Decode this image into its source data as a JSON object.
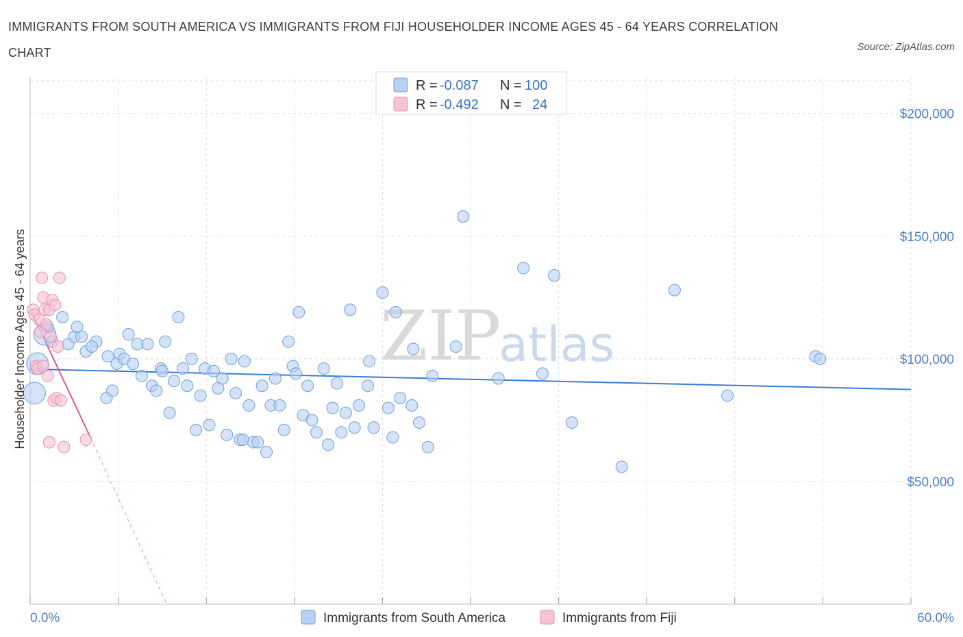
{
  "title": "IMMIGRANTS FROM SOUTH AMERICA VS IMMIGRANTS FROM FIJI HOUSEHOLDER INCOME AGES 45 - 64 YEARS CORRELATION CHART",
  "source": "Source: ZipAtlas.com",
  "watermark": {
    "zip": "ZIP",
    "atlas": "atlas"
  },
  "colors": {
    "blue_fill": "#b8d0f2",
    "blue_stroke": "#6f9fdc",
    "blue_line": "#3a7bd5",
    "pink_fill": "#f7c3d4",
    "pink_stroke": "#e890ad",
    "pink_line": "#e0588a",
    "tick_blue": "#4a7fc7",
    "grid": "#dddddd"
  },
  "legend": {
    "rows": [
      {
        "r_label": "R = ",
        "r_value": "-0.087",
        "n_label": "N = ",
        "n_value": "100",
        "series": "blue"
      },
      {
        "r_label": "R = ",
        "r_value": "-0.492",
        "n_label": "N = ",
        "n_value": "24",
        "series": "pink"
      }
    ]
  },
  "bottom_legend": [
    "Immigrants from South America",
    "Immigrants from Fiji"
  ],
  "chart_data": {
    "type": "scatter",
    "title": "IMMIGRANTS FROM SOUTH AMERICA VS IMMIGRANTS FROM FIJI HOUSEHOLDER INCOME AGES 45 - 64 YEARS CORRELATION CHART",
    "xlabel": "",
    "ylabel": "Householder Income Ages 45 - 64 years",
    "xlim": [
      0,
      60
    ],
    "ylim": [
      0,
      215000
    ],
    "x_tick_labels": [
      {
        "value": 0,
        "label": "0.0%"
      },
      {
        "value": 60,
        "label": "60.0%"
      }
    ],
    "y_ticks": [
      {
        "value": 200000,
        "label": "$200,000"
      },
      {
        "value": 150000,
        "label": "$150,000"
      },
      {
        "value": 100000,
        "label": "$100,000"
      },
      {
        "value": 50000,
        "label": "$50,000"
      }
    ],
    "grid": true,
    "legend_position": "top-center",
    "series": [
      {
        "name": "Immigrants from South America",
        "color": "#b8d0f2",
        "trend": {
          "x": [
            0,
            60
          ],
          "y": [
            95800,
            87500
          ],
          "style": "solid"
        },
        "points": [
          {
            "x": 0.3,
            "y": 86000,
            "big": true
          },
          {
            "x": 0.5,
            "y": 98000,
            "big": true
          },
          {
            "x": 1.0,
            "y": 110000,
            "big": true
          },
          {
            "x": 1.2,
            "y": 113000
          },
          {
            "x": 1.5,
            "y": 107000
          },
          {
            "x": 2.2,
            "y": 117000
          },
          {
            "x": 2.6,
            "y": 106000
          },
          {
            "x": 3.0,
            "y": 109000
          },
          {
            "x": 3.2,
            "y": 113000
          },
          {
            "x": 3.5,
            "y": 109000
          },
          {
            "x": 3.8,
            "y": 103000
          },
          {
            "x": 4.5,
            "y": 107000
          },
          {
            "x": 4.2,
            "y": 105000
          },
          {
            "x": 5.3,
            "y": 101000
          },
          {
            "x": 5.2,
            "y": 84000
          },
          {
            "x": 5.6,
            "y": 87000
          },
          {
            "x": 5.9,
            "y": 98000
          },
          {
            "x": 6.1,
            "y": 102000
          },
          {
            "x": 6.4,
            "y": 100000
          },
          {
            "x": 6.7,
            "y": 110000
          },
          {
            "x": 7.0,
            "y": 98000
          },
          {
            "x": 7.3,
            "y": 106000
          },
          {
            "x": 7.6,
            "y": 93000
          },
          {
            "x": 8.0,
            "y": 106000
          },
          {
            "x": 8.3,
            "y": 89000
          },
          {
            "x": 8.6,
            "y": 87000
          },
          {
            "x": 8.9,
            "y": 96000
          },
          {
            "x": 9.2,
            "y": 107000
          },
          {
            "x": 9.5,
            "y": 78000
          },
          {
            "x": 9.8,
            "y": 91000
          },
          {
            "x": 10.1,
            "y": 117000
          },
          {
            "x": 10.4,
            "y": 96000
          },
          {
            "x": 10.7,
            "y": 89000
          },
          {
            "x": 11.0,
            "y": 100000
          },
          {
            "x": 11.3,
            "y": 71000
          },
          {
            "x": 11.6,
            "y": 85000
          },
          {
            "x": 11.9,
            "y": 96000
          },
          {
            "x": 12.2,
            "y": 73000
          },
          {
            "x": 12.5,
            "y": 95000
          },
          {
            "x": 12.8,
            "y": 88000
          },
          {
            "x": 13.1,
            "y": 92000
          },
          {
            "x": 13.4,
            "y": 69000
          },
          {
            "x": 13.7,
            "y": 100000
          },
          {
            "x": 14.0,
            "y": 86000
          },
          {
            "x": 14.3,
            "y": 67000
          },
          {
            "x": 14.6,
            "y": 99000
          },
          {
            "x": 14.9,
            "y": 81000
          },
          {
            "x": 15.2,
            "y": 66000
          },
          {
            "x": 15.5,
            "y": 66000
          },
          {
            "x": 15.8,
            "y": 89000
          },
          {
            "x": 16.1,
            "y": 62000
          },
          {
            "x": 16.4,
            "y": 81000
          },
          {
            "x": 16.7,
            "y": 92000
          },
          {
            "x": 17.0,
            "y": 81000
          },
          {
            "x": 17.3,
            "y": 71000
          },
          {
            "x": 17.6,
            "y": 107000
          },
          {
            "x": 17.9,
            "y": 97000
          },
          {
            "x": 18.1,
            "y": 94000
          },
          {
            "x": 18.3,
            "y": 119000
          },
          {
            "x": 18.6,
            "y": 77000
          },
          {
            "x": 18.9,
            "y": 89000
          },
          {
            "x": 19.2,
            "y": 75000
          },
          {
            "x": 19.5,
            "y": 70000
          },
          {
            "x": 20.0,
            "y": 96000
          },
          {
            "x": 20.3,
            "y": 65000
          },
          {
            "x": 20.6,
            "y": 80000
          },
          {
            "x": 20.9,
            "y": 90000
          },
          {
            "x": 21.2,
            "y": 70000
          },
          {
            "x": 21.5,
            "y": 78000
          },
          {
            "x": 21.8,
            "y": 120000
          },
          {
            "x": 22.1,
            "y": 72000
          },
          {
            "x": 22.4,
            "y": 81000
          },
          {
            "x": 23.0,
            "y": 89000
          },
          {
            "x": 23.1,
            "y": 99000
          },
          {
            "x": 23.4,
            "y": 72000
          },
          {
            "x": 24.0,
            "y": 127000
          },
          {
            "x": 24.4,
            "y": 80000
          },
          {
            "x": 24.7,
            "y": 68000
          },
          {
            "x": 24.9,
            "y": 119000
          },
          {
            "x": 25.2,
            "y": 84000
          },
          {
            "x": 26.0,
            "y": 81000
          },
          {
            "x": 26.1,
            "y": 104000
          },
          {
            "x": 26.5,
            "y": 74000
          },
          {
            "x": 27.1,
            "y": 64000
          },
          {
            "x": 27.4,
            "y": 93000
          },
          {
            "x": 29.0,
            "y": 105000
          },
          {
            "x": 29.5,
            "y": 158000
          },
          {
            "x": 31.9,
            "y": 92000
          },
          {
            "x": 33.6,
            "y": 137000
          },
          {
            "x": 34.9,
            "y": 94000
          },
          {
            "x": 35.7,
            "y": 134000
          },
          {
            "x": 36.9,
            "y": 74000
          },
          {
            "x": 40.3,
            "y": 56000
          },
          {
            "x": 43.9,
            "y": 128000
          },
          {
            "x": 47.5,
            "y": 85000
          },
          {
            "x": 53.5,
            "y": 101000
          },
          {
            "x": 53.8,
            "y": 100000
          },
          {
            "x": 14.5,
            "y": 67000
          },
          {
            "x": 9.0,
            "y": 95000
          }
        ]
      },
      {
        "name": "Immigrants from Fiji",
        "color": "#f7c3d4",
        "trend": {
          "x": [
            0.1,
            4.1
          ],
          "y": [
            119000,
            68000
          ],
          "style": "solid",
          "extension": {
            "x": [
              4.1,
              9.3
            ],
            "y": [
              68000,
              0
            ],
            "style": "dashed"
          }
        },
        "points": [
          {
            "x": 0.2,
            "y": 120000
          },
          {
            "x": 0.3,
            "y": 118000
          },
          {
            "x": 0.4,
            "y": 97000
          },
          {
            "x": 0.6,
            "y": 116000
          },
          {
            "x": 0.8,
            "y": 133000
          },
          {
            "x": 0.9,
            "y": 125000
          },
          {
            "x": 0.7,
            "y": 111000
          },
          {
            "x": 1.0,
            "y": 120000
          },
          {
            "x": 1.1,
            "y": 114000
          },
          {
            "x": 1.2,
            "y": 93000
          },
          {
            "x": 1.3,
            "y": 120000
          },
          {
            "x": 1.5,
            "y": 124000
          },
          {
            "x": 1.6,
            "y": 83000
          },
          {
            "x": 1.7,
            "y": 122000
          },
          {
            "x": 1.8,
            "y": 84000
          },
          {
            "x": 1.9,
            "y": 105000
          },
          {
            "x": 2.0,
            "y": 133000
          },
          {
            "x": 2.1,
            "y": 83000
          },
          {
            "x": 2.3,
            "y": 64000
          },
          {
            "x": 1.3,
            "y": 66000
          },
          {
            "x": 3.8,
            "y": 67000
          },
          {
            "x": 0.5,
            "y": 96000
          },
          {
            "x": 0.9,
            "y": 97000
          },
          {
            "x": 1.4,
            "y": 109000
          }
        ]
      }
    ]
  }
}
